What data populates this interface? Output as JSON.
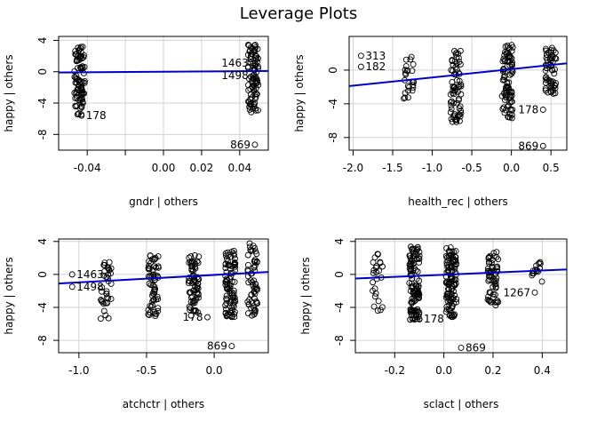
{
  "title": "Leverage Plots",
  "chart_data": [
    {
      "type": "scatter",
      "xlabel": "gndr | others",
      "ylabel": "happy  | others",
      "xlim": [
        -0.055,
        0.055
      ],
      "ylim": [
        -10,
        4.5
      ],
      "xticks": [
        -0.04,
        -0.02,
        0.0,
        0.02,
        0.04
      ],
      "xtick_labels": [
        "-0.04",
        "",
        "0.00",
        "0.02",
        "0.04"
      ],
      "yticks": [
        -8,
        -4,
        0,
        4
      ],
      "ytick_labels": [
        "-8",
        "-4",
        "0",
        "4"
      ],
      "grid": true,
      "fit_line": {
        "x": [
          -0.055,
          0.055
        ],
        "y": [
          -0.1,
          0.1
        ]
      },
      "clusters": [
        {
          "x": -0.044,
          "y_min": -5.5,
          "y_max": 3.2,
          "n": 90
        },
        {
          "x": 0.047,
          "y_min": -5.2,
          "y_max": 3.5,
          "n": 90
        }
      ],
      "points": [
        {
          "x": -0.043,
          "y": -5.6,
          "label": "178"
        },
        {
          "x": 0.047,
          "y": 1.1,
          "label": "1463"
        },
        {
          "x": 0.047,
          "y": -0.5,
          "label": "1498"
        },
        {
          "x": 0.048,
          "y": -9.3,
          "label": "869"
        }
      ]
    },
    {
      "type": "scatter",
      "xlabel": "health_rec | others",
      "ylabel": "happy  | others",
      "xlim": [
        -2.05,
        0.7
      ],
      "ylim": [
        -9.5,
        4
      ],
      "xticks": [
        -2.0,
        -1.5,
        -1.0,
        -0.5,
        0.0,
        0.5
      ],
      "xtick_labels": [
        "-2.0",
        "-1.5",
        "-1.0",
        "-0.5",
        "0.0",
        "0.5"
      ],
      "yticks": [
        -8,
        -4,
        0
      ],
      "ytick_labels": [
        "-8",
        "-4",
        "0"
      ],
      "grid": true,
      "fit_line": {
        "x": [
          -2.05,
          0.7
        ],
        "y": [
          -1.9,
          0.8
        ]
      },
      "clusters": [
        {
          "x": -0.7,
          "y_min": -6.2,
          "y_max": 2.6,
          "n": 70
        },
        {
          "x": -0.05,
          "y_min": -5.8,
          "y_max": 3.0,
          "n": 90
        },
        {
          "x": 0.5,
          "y_min": -2.8,
          "y_max": 3.0,
          "n": 60
        },
        {
          "x": -1.3,
          "y_min": -3.5,
          "y_max": 1.8,
          "n": 25
        }
      ],
      "points": [
        {
          "x": -1.9,
          "y": 1.7,
          "label": "313"
        },
        {
          "x": -1.9,
          "y": 0.4,
          "label": "182"
        },
        {
          "x": 0.4,
          "y": -4.7,
          "label": "178"
        },
        {
          "x": 0.4,
          "y": -9.0,
          "label": "869"
        }
      ]
    },
    {
      "type": "scatter",
      "xlabel": "atchctr | others",
      "ylabel": "happy  | others",
      "xlim": [
        -1.15,
        0.4
      ],
      "ylim": [
        -9.5,
        4.3
      ],
      "xticks": [
        -1.0,
        -0.5,
        0.0
      ],
      "xtick_labels": [
        "-1.0",
        "-0.5",
        "0.0"
      ],
      "yticks": [
        -8,
        -4,
        0,
        4
      ],
      "ytick_labels": [
        "-8",
        "-4",
        "0",
        "4"
      ],
      "grid": true,
      "fit_line": {
        "x": [
          -1.15,
          0.4
        ],
        "y": [
          -1.1,
          0.3
        ]
      },
      "clusters": [
        {
          "x": -0.45,
          "y_min": -5.2,
          "y_max": 2.5,
          "n": 60
        },
        {
          "x": -0.15,
          "y_min": -5.0,
          "y_max": 2.6,
          "n": 70
        },
        {
          "x": 0.12,
          "y_min": -5.2,
          "y_max": 3.0,
          "n": 90
        },
        {
          "x": 0.28,
          "y_min": -5.0,
          "y_max": 3.8,
          "n": 60
        },
        {
          "x": -0.8,
          "y_min": -5.5,
          "y_max": 2.2,
          "n": 35
        }
      ],
      "points": [
        {
          "x": -1.05,
          "y": 0.0,
          "label": "1463"
        },
        {
          "x": -1.05,
          "y": -1.5,
          "label": "1498"
        },
        {
          "x": -0.05,
          "y": -5.2,
          "label": "178"
        },
        {
          "x": 0.13,
          "y": -8.7,
          "label": "869"
        }
      ]
    },
    {
      "type": "scatter",
      "xlabel": "sclact | others",
      "ylabel": "happy  | others",
      "xlim": [
        -0.36,
        0.5
      ],
      "ylim": [
        -9.5,
        4.3
      ],
      "xticks": [
        -0.2,
        0.0,
        0.2,
        0.4
      ],
      "xtick_labels": [
        "-0.2",
        "0.0",
        "0.2",
        "0.4"
      ],
      "yticks": [
        -8,
        -4,
        0,
        4
      ],
      "ytick_labels": [
        "-8",
        "-4",
        "0",
        "4"
      ],
      "grid": true,
      "fit_line": {
        "x": [
          -0.36,
          0.5
        ],
        "y": [
          -0.5,
          0.6
        ]
      },
      "clusters": [
        {
          "x": -0.12,
          "y_min": -5.5,
          "y_max": 3.4,
          "n": 110
        },
        {
          "x": 0.03,
          "y_min": -5.3,
          "y_max": 3.3,
          "n": 110
        },
        {
          "x": 0.2,
          "y_min": -4.0,
          "y_max": 3.0,
          "n": 60
        },
        {
          "x": -0.27,
          "y_min": -4.5,
          "y_max": 2.5,
          "n": 25
        },
        {
          "x": 0.38,
          "y_min": -1.5,
          "y_max": 1.5,
          "n": 15
        }
      ],
      "points": [
        {
          "x": -0.1,
          "y": -5.4,
          "label": "178"
        },
        {
          "x": 0.37,
          "y": -2.2,
          "label": "1267"
        },
        {
          "x": 0.07,
          "y": -8.9,
          "label": "869"
        }
      ]
    }
  ]
}
